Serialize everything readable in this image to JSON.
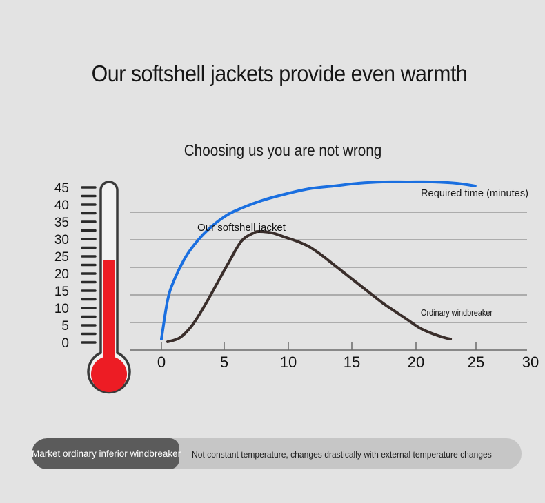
{
  "header": {
    "title": "Our softshell jackets provide even warmth",
    "subtitle": "Choosing us you are not wrong"
  },
  "thermometer": {
    "scale_labels": [
      "45",
      "40",
      "35",
      "30",
      "25",
      "20",
      "15",
      "10",
      "5",
      "0"
    ],
    "fill_level": 24,
    "scale_max": 45,
    "fill_color": "#ed1c24"
  },
  "chart_data": {
    "type": "line",
    "xlabel": "Required time (minutes)",
    "ylabel": "",
    "xlim": [
      0,
      30
    ],
    "x_ticks": [
      "0",
      "5",
      "10",
      "15",
      "20",
      "25",
      "30"
    ],
    "grid": "horizontal",
    "series": [
      {
        "name": "Our softshell jacket",
        "color": "#1a6fe0",
        "x": [
          0,
          0.5,
          1,
          2,
          3,
          4,
          5,
          6,
          8,
          10,
          12,
          14,
          16,
          18,
          20,
          22,
          24,
          25.5
        ],
        "y": [
          0.4,
          1.8,
          2.5,
          3.4,
          4.0,
          4.45,
          4.8,
          5.05,
          5.4,
          5.65,
          5.85,
          5.95,
          6.05,
          6.1,
          6.1,
          6.1,
          6.05,
          5.95
        ]
      },
      {
        "name": "Ordinary windbreaker",
        "color": "#3a2e2b",
        "x": [
          0.5,
          1.5,
          2.5,
          3.5,
          4.5,
          5.5,
          6.5,
          7.5,
          8,
          9,
          10,
          11,
          12,
          13,
          14,
          15,
          16,
          17,
          18,
          19,
          20,
          21,
          22,
          23,
          23.5
        ],
        "y": [
          0.3,
          0.45,
          0.9,
          1.6,
          2.4,
          3.2,
          3.95,
          4.25,
          4.3,
          4.25,
          4.1,
          3.95,
          3.75,
          3.45,
          3.1,
          2.75,
          2.4,
          2.05,
          1.7,
          1.4,
          1.1,
          0.8,
          0.6,
          0.45,
          0.4
        ]
      }
    ]
  },
  "banner": {
    "label": "Market ordinary inferior windbreaker",
    "text": "Not constant temperature, changes drastically with external temperature changes"
  }
}
